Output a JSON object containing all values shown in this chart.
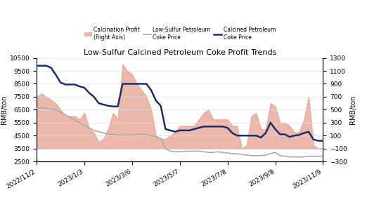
{
  "title": "Low-Sulfur Calcined Petroleum Coke Profit Trends",
  "ylabel_left": "RMB/ton",
  "ylabel_right": "RMB/ton",
  "ylim_left": [
    2500,
    10500
  ],
  "ylim_right": [
    -300,
    1300
  ],
  "yticks_left": [
    2500,
    3500,
    4500,
    5500,
    6500,
    7500,
    8500,
    9500,
    10500
  ],
  "yticks_right": [
    -300,
    -100,
    100,
    300,
    500,
    700,
    900,
    1100,
    1300
  ],
  "xtick_labels": [
    "2022/11/2",
    "2023/1/3",
    "2023/3/6",
    "2023/5/7",
    "2023/7/8",
    "2023/9/8",
    "2023/11/9"
  ],
  "background_color": "#ffffff",
  "fill_color": "#e8a090",
  "fill_alpha": 0.75,
  "low_sulfur_color": "#aaaaaa",
  "calcined_color": "#1a2e6e",
  "low_sulfur_y": [
    6600,
    6650,
    6600,
    6550,
    6500,
    6300,
    6100,
    5900,
    5700,
    5500,
    5300,
    5100,
    4900,
    4800,
    4700,
    4600,
    4600,
    4550,
    4550,
    4550,
    4550,
    4600,
    4600,
    4600,
    4500,
    4400,
    4300,
    3500,
    3300,
    3250,
    3250,
    3280,
    3300,
    3300,
    3300,
    3250,
    3200,
    3200,
    3250,
    3200,
    3150,
    3100,
    3100,
    3050,
    3000,
    2950,
    2950,
    2950,
    3000,
    3100,
    3200,
    2950,
    2900,
    2850,
    2850,
    2850,
    2850,
    2900,
    2900,
    2900,
    2900
  ],
  "calcined_y": [
    9900,
    9900,
    9900,
    9750,
    9200,
    8600,
    8450,
    8450,
    8450,
    8300,
    8200,
    7800,
    7500,
    7000,
    6900,
    6800,
    6750,
    6750,
    8500,
    8500,
    8500,
    8500,
    8500,
    8500,
    8000,
    7200,
    6800,
    5000,
    4900,
    4800,
    4900,
    4900,
    4900,
    5000,
    5100,
    5200,
    5200,
    5200,
    5200,
    5200,
    5100,
    4700,
    4500,
    4500,
    4500,
    4500,
    4500,
    4350,
    4700,
    5500,
    5000,
    4600,
    4600,
    4400,
    4500,
    4550,
    4700,
    4800,
    4200,
    4100,
    4100
  ],
  "profit_y": [
    700,
    750,
    700,
    650,
    600,
    500,
    400,
    400,
    400,
    350,
    450,
    200,
    150,
    0,
    50,
    200,
    450,
    350,
    1200,
    1100,
    1050,
    900,
    800,
    700,
    500,
    100,
    50,
    50,
    100,
    150,
    250,
    250,
    250,
    250,
    350,
    450,
    500,
    350,
    350,
    350,
    350,
    250,
    250,
    -100,
    -50,
    400,
    450,
    200,
    200,
    600,
    550,
    300,
    300,
    250,
    150,
    150,
    350,
    700,
    -50,
    -100,
    -100
  ]
}
